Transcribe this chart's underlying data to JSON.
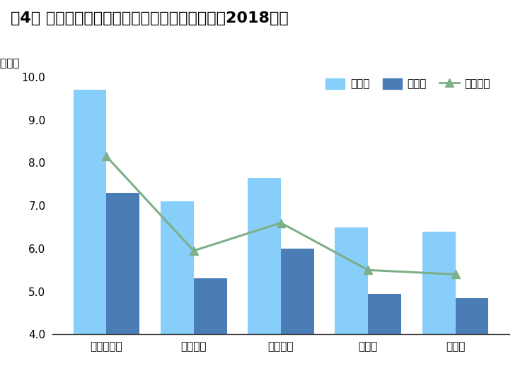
{
  "title": "図4． 首都圈・新築マンションの世帯年收倍率（2018年）",
  "categories": [
    "東京都区部",
    "東京都下",
    "神奈川県",
    "埼玉県",
    "千葉県"
  ],
  "kata_values": [
    9.7,
    7.1,
    7.65,
    6.5,
    6.4
  ],
  "tomo_values": [
    7.3,
    5.3,
    6.0,
    4.95,
    4.85
  ],
  "weighted_avg": [
    8.15,
    5.95,
    6.6,
    5.5,
    5.4
  ],
  "kata_color": "#87CEFA",
  "tomo_color": "#4A7DB5",
  "weighted_color": "#7DAF88",
  "ylim": [
    4.0,
    10.2
  ],
  "yticks": [
    4.0,
    5.0,
    6.0,
    7.0,
    8.0,
    9.0,
    10.0
  ],
  "legend_kata": "片働き",
  "legend_tomo": "共働き",
  "legend_weighted": "加重平均",
  "bar_width": 0.38,
  "title_fontsize": 16,
  "axis_fontsize": 11,
  "tick_fontsize": 11,
  "legend_fontsize": 11,
  "bg_color": "#FFFFFF"
}
